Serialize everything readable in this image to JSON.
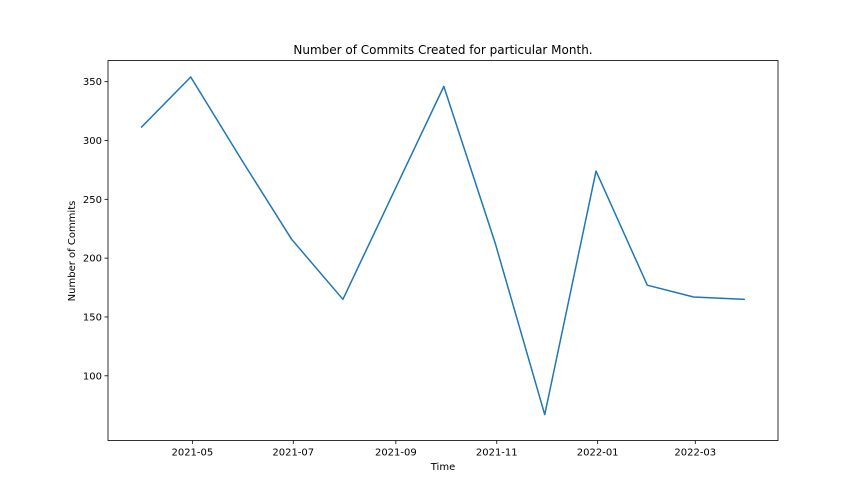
{
  "chart_data": {
    "type": "line",
    "title": "Number of Commits Created for particular Month.",
    "xlabel": "Time",
    "ylabel": "Number of Commits",
    "x_tick_labels": [
      "2021-05",
      "2021-07",
      "2021-09",
      "2021-11",
      "2022-01",
      "2022-03"
    ],
    "y_tick_labels": [
      "100",
      "150",
      "200",
      "250",
      "300",
      "350"
    ],
    "y_ticks": [
      100,
      150,
      200,
      250,
      300,
      350
    ],
    "ylim": [
      45,
      368
    ],
    "xlim": [
      "2021-03-11",
      "2022-04-20"
    ],
    "grid": false,
    "legend": "none",
    "line_color": "#1f77b4",
    "series": [
      {
        "x": [
          "2021-03-31",
          "2021-04-30",
          "2021-05-31",
          "2021-06-30",
          "2021-07-31",
          "2021-08-31",
          "2021-09-30",
          "2021-10-31",
          "2021-11-30",
          "2021-12-31",
          "2022-01-31",
          "2022-02-28",
          "2022-03-31"
        ],
        "values": [
          311,
          354,
          283,
          216,
          165,
          257,
          346,
          213,
          67,
          274,
          177,
          167,
          165
        ]
      }
    ]
  }
}
